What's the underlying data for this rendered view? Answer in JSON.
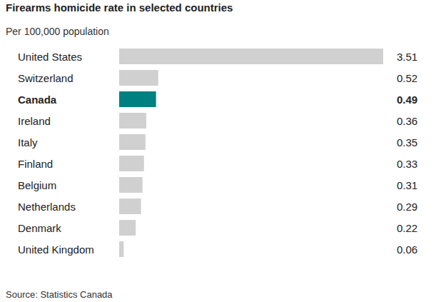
{
  "chart_data": {
    "type": "bar",
    "orientation": "horizontal",
    "title": "Firearms homicide rate in selected countries",
    "subtitle": "Per 100,000 population",
    "source": "Source: Statistics Canada",
    "categories": [
      "United States",
      "Switzerland",
      "Canada",
      "Ireland",
      "Italy",
      "Finland",
      "Belgium",
      "Netherlands",
      "Denmark",
      "United Kingdom"
    ],
    "values": [
      3.51,
      0.52,
      0.49,
      0.36,
      0.35,
      0.33,
      0.31,
      0.29,
      0.22,
      0.06
    ],
    "colors": [
      "#d0d0d0",
      "#d0d0d0",
      "#008080",
      "#d0d0d0",
      "#d0d0d0",
      "#d0d0d0",
      "#d0d0d0",
      "#d0d0d0",
      "#d0d0d0",
      "#d0d0d0"
    ],
    "xlim": [
      0,
      3.51
    ],
    "data_labels": true,
    "tick_labels": "y",
    "grid": false
  }
}
